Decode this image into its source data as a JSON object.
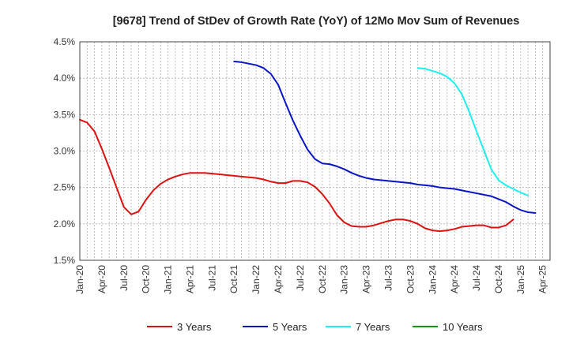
{
  "chart_data": {
    "type": "line",
    "title": "[9678]  Trend of StDev of Growth Rate (YoY) of 12Mo Mov Sum of Revenues",
    "xlabel": "",
    "ylabel": "",
    "ylim": [
      1.5,
      4.5
    ],
    "y_ticks": [
      "1.5%",
      "2.0%",
      "2.5%",
      "3.0%",
      "3.5%",
      "4.0%",
      "4.5%"
    ],
    "y_tick_values": [
      1.5,
      2.0,
      2.5,
      3.0,
      3.5,
      4.0,
      4.5
    ],
    "x_tick_labels": [
      "Jan-20",
      "Apr-20",
      "Jul-20",
      "Oct-20",
      "Jan-21",
      "Apr-21",
      "Jul-21",
      "Oct-21",
      "Jan-22",
      "Apr-22",
      "Jul-22",
      "Oct-22",
      "Jan-23",
      "Apr-23",
      "Jul-23",
      "Oct-23",
      "Jan-24",
      "Apr-24",
      "Jul-24",
      "Oct-24",
      "Jan-25",
      "Apr-25"
    ],
    "x_start_month": "Jan-20",
    "x_month_count": 64,
    "grid": true,
    "legend_position": "bottom",
    "series": [
      {
        "name": "3 Years",
        "color": "#dd1111",
        "start_index": 0,
        "values": [
          3.43,
          3.39,
          3.27,
          3.03,
          2.77,
          2.5,
          2.23,
          2.13,
          2.17,
          2.33,
          2.46,
          2.55,
          2.61,
          2.65,
          2.68,
          2.7,
          2.7,
          2.7,
          2.69,
          2.68,
          2.67,
          2.66,
          2.65,
          2.64,
          2.63,
          2.61,
          2.58,
          2.56,
          2.56,
          2.59,
          2.59,
          2.57,
          2.51,
          2.41,
          2.28,
          2.12,
          2.02,
          1.97,
          1.96,
          1.96,
          1.98,
          2.01,
          2.04,
          2.06,
          2.06,
          2.04,
          2.0,
          1.94,
          1.91,
          1.9,
          1.91,
          1.93,
          1.96,
          1.97,
          1.98,
          1.98,
          1.95,
          1.95,
          1.98,
          2.06
        ]
      },
      {
        "name": "5 Years",
        "color": "#0a14c8",
        "start_index": 21,
        "values": [
          4.23,
          4.22,
          4.2,
          4.18,
          4.14,
          4.06,
          3.91,
          3.66,
          3.42,
          3.21,
          3.02,
          2.89,
          2.83,
          2.82,
          2.79,
          2.75,
          2.7,
          2.66,
          2.63,
          2.61,
          2.6,
          2.59,
          2.58,
          2.57,
          2.56,
          2.54,
          2.53,
          2.52,
          2.5,
          2.49,
          2.48,
          2.46,
          2.44,
          2.42,
          2.4,
          2.38,
          2.34,
          2.3,
          2.24,
          2.19,
          2.16,
          2.15
        ]
      },
      {
        "name": "7 Years",
        "color": "#1cf0f0",
        "start_index": 46,
        "values": [
          4.14,
          4.13,
          4.1,
          4.07,
          4.02,
          3.93,
          3.78,
          3.54,
          3.27,
          3.01,
          2.75,
          2.6,
          2.53,
          2.48,
          2.43,
          2.39
        ]
      },
      {
        "name": "10 Years",
        "color": "#109910",
        "start_index": 0,
        "values": []
      }
    ]
  }
}
